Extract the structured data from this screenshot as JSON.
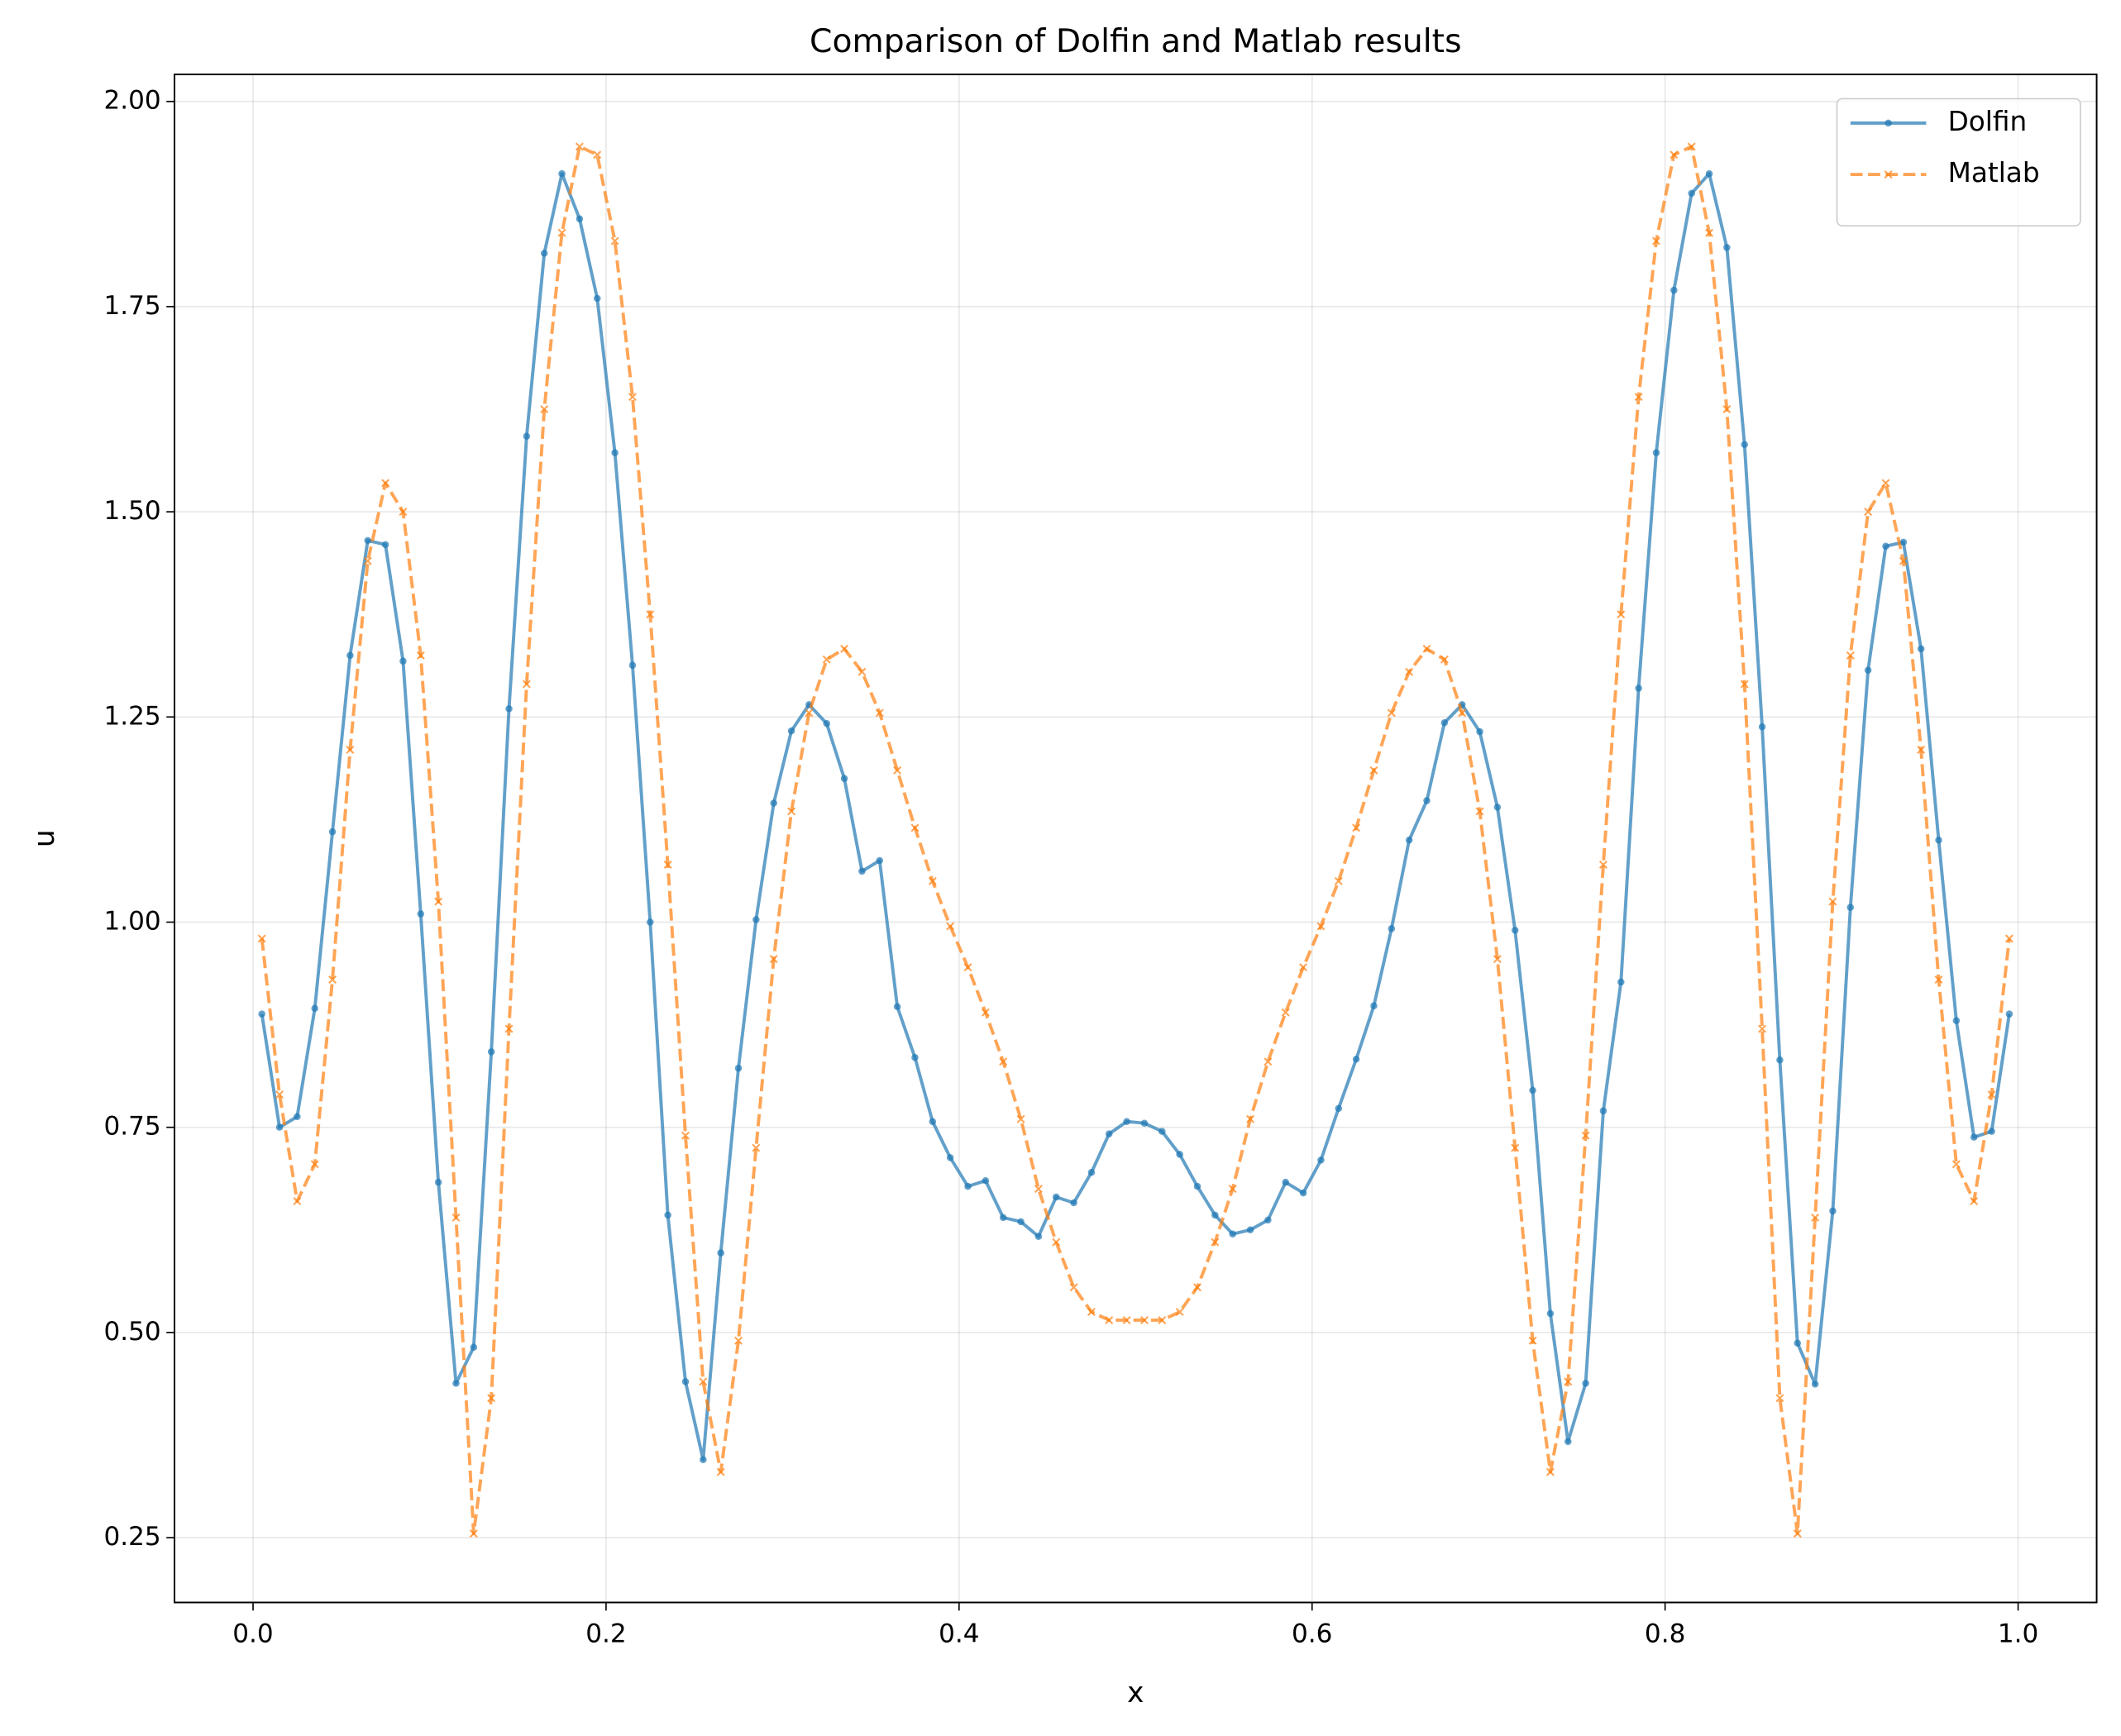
{
  "chart_data": {
    "type": "line",
    "title": "Comparison of Dolfin and Matlab results",
    "x_label": "x",
    "y_label": "u",
    "x": [
      0.005,
      0.015,
      0.025,
      0.035,
      0.045,
      0.055,
      0.065,
      0.075,
      0.085,
      0.095,
      0.105,
      0.115,
      0.125,
      0.135,
      0.145,
      0.155,
      0.165,
      0.175,
      0.185,
      0.195,
      0.205,
      0.215,
      0.225,
      0.235,
      0.245,
      0.255,
      0.265,
      0.275,
      0.285,
      0.295,
      0.305,
      0.315,
      0.325,
      0.335,
      0.345,
      0.355,
      0.365,
      0.375,
      0.385,
      0.395,
      0.405,
      0.415,
      0.425,
      0.435,
      0.445,
      0.455,
      0.465,
      0.475,
      0.485,
      0.495,
      0.505,
      0.515,
      0.525,
      0.535,
      0.545,
      0.555,
      0.565,
      0.575,
      0.585,
      0.595,
      0.605,
      0.615,
      0.625,
      0.635,
      0.645,
      0.655,
      0.665,
      0.675,
      0.685,
      0.695,
      0.705,
      0.715,
      0.725,
      0.735,
      0.745,
      0.755,
      0.765,
      0.775,
      0.785,
      0.795,
      0.805,
      0.815,
      0.825,
      0.835,
      0.845,
      0.855,
      0.865,
      0.875,
      0.885,
      0.895,
      0.905,
      0.915,
      0.925,
      0.935,
      0.945,
      0.955,
      0.965,
      0.975,
      0.985,
      0.995
    ],
    "series": [
      {
        "name": "Dolfin",
        "color": "#1f77b4",
        "marker": "o",
        "linestyle": "solid",
        "values": [
          0.888,
          0.75,
          0.763,
          0.895,
          1.11,
          1.325,
          1.465,
          1.46,
          1.318,
          1.01,
          0.683,
          0.438,
          0.482,
          0.842,
          1.26,
          1.592,
          1.815,
          1.912,
          1.857,
          1.76,
          1.572,
          1.313,
          1.0,
          0.643,
          0.44,
          0.345,
          0.597,
          0.822,
          1.003,
          1.145,
          1.233,
          1.265,
          1.242,
          1.175,
          1.062,
          1.075,
          0.897,
          0.835,
          0.757,
          0.713,
          0.678,
          0.685,
          0.64,
          0.635,
          0.617,
          0.665,
          0.658,
          0.695,
          0.742,
          0.757,
          0.755,
          0.745,
          0.717,
          0.678,
          0.643,
          0.62,
          0.625,
          0.637,
          0.683,
          0.67,
          0.71,
          0.773,
          0.833,
          0.898,
          0.992,
          1.1,
          1.148,
          1.243,
          1.265,
          1.232,
          1.14,
          0.99,
          0.795,
          0.523,
          0.367,
          0.438,
          0.77,
          0.927,
          1.285,
          1.572,
          1.77,
          1.888,
          1.912,
          1.822,
          1.582,
          1.238,
          0.832,
          0.487,
          0.437,
          0.648,
          1.018,
          1.307,
          1.458,
          1.463,
          1.333,
          1.1,
          0.88,
          0.738,
          0.745,
          0.888
        ]
      },
      {
        "name": "Matlab",
        "color": "#ff7f0e",
        "marker": "x",
        "linestyle": "dashed",
        "values": [
          0.98,
          0.79,
          0.66,
          0.705,
          0.93,
          1.21,
          1.44,
          1.535,
          1.5,
          1.325,
          1.025,
          0.64,
          0.255,
          0.42,
          0.87,
          1.29,
          1.625,
          1.84,
          1.945,
          1.935,
          1.83,
          1.64,
          1.375,
          1.07,
          0.74,
          0.44,
          0.33,
          0.49,
          0.725,
          0.955,
          1.135,
          1.255,
          1.32,
          1.333,
          1.305,
          1.255,
          1.185,
          1.115,
          1.05,
          0.995,
          0.945,
          0.89,
          0.83,
          0.76,
          0.675,
          0.61,
          0.555,
          0.525,
          0.515,
          0.515,
          0.515,
          0.515,
          0.525,
          0.555,
          0.61,
          0.675,
          0.76,
          0.83,
          0.89,
          0.945,
          0.995,
          1.05,
          1.115,
          1.185,
          1.255,
          1.305,
          1.333,
          1.32,
          1.255,
          1.135,
          0.955,
          0.725,
          0.49,
          0.33,
          0.44,
          0.74,
          1.07,
          1.375,
          1.64,
          1.83,
          1.935,
          1.945,
          1.84,
          1.625,
          1.29,
          0.87,
          0.42,
          0.255,
          0.64,
          1.025,
          1.325,
          1.5,
          1.535,
          1.44,
          1.21,
          0.93,
          0.705,
          0.66,
          0.79,
          0.98
        ]
      }
    ],
    "xlim": [
      -0.0445,
      1.0445
    ],
    "xticks": [
      {
        "value": 0,
        "label": "0.0"
      },
      0.2,
      0.4,
      0.6,
      0.8,
      {
        "value": 1,
        "label": "1.0"
      }
    ],
    "ylim": [
      0.171,
      2.033
    ],
    "yticks": [
      0.25,
      {
        "value": 0.5,
        "label": "0.50"
      },
      0.75,
      {
        "value": 1,
        "label": "1.00"
      },
      1.25,
      {
        "value": 1.5,
        "label": "1.50"
      },
      1.75,
      {
        "value": 2,
        "label": "2.00"
      }
    ],
    "grid": true,
    "legend": "upper right"
  }
}
